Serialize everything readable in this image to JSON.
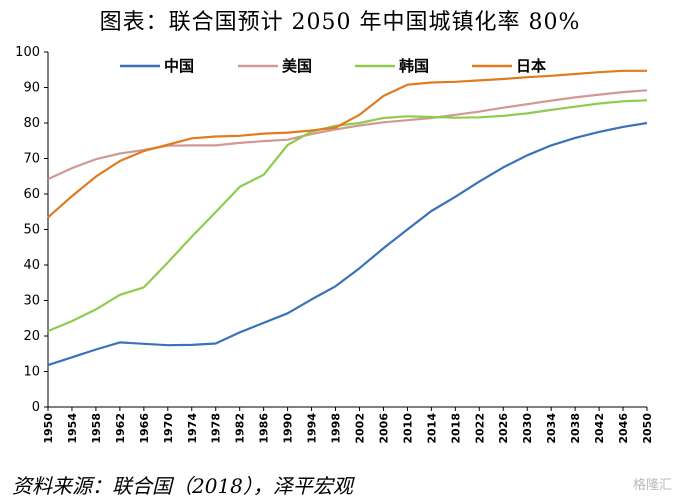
{
  "title": "图表：联合国预计 2050 年中国城镇化率 80%",
  "source": "资料来源：联合国（2018），泽平宏观",
  "watermark": "格隆汇",
  "chart_data": {
    "type": "line",
    "x": [
      1950,
      1954,
      1958,
      1962,
      1966,
      1970,
      1974,
      1978,
      1982,
      1986,
      1990,
      1994,
      1998,
      2002,
      2006,
      2010,
      2014,
      2018,
      2022,
      2026,
      2030,
      2034,
      2038,
      2042,
      2046,
      2050
    ],
    "ylim": [
      0,
      100
    ],
    "yticks": [
      0,
      10,
      20,
      30,
      40,
      50,
      60,
      70,
      80,
      90,
      100
    ],
    "grid": false,
    "legend_position": "top",
    "series": [
      {
        "name": "中国",
        "color": "#3a72b9",
        "values": [
          11.8,
          14.0,
          16.2,
          18.2,
          17.8,
          17.4,
          17.5,
          17.9,
          21.0,
          23.7,
          26.4,
          30.3,
          34.0,
          39.1,
          44.7,
          50.0,
          55.2,
          59.2,
          63.5,
          67.5,
          70.9,
          73.7,
          75.8,
          77.5,
          78.9,
          80.0
        ]
      },
      {
        "name": "美国",
        "color": "#d09a92",
        "values": [
          64.2,
          67.3,
          69.8,
          71.4,
          72.4,
          73.6,
          73.7,
          73.7,
          74.4,
          74.9,
          75.3,
          76.9,
          78.2,
          79.3,
          80.2,
          80.8,
          81.4,
          82.3,
          83.2,
          84.3,
          85.3,
          86.3,
          87.2,
          88.0,
          88.7,
          89.2
        ]
      },
      {
        "name": "韩国",
        "color": "#8fcc4e",
        "values": [
          21.4,
          24.2,
          27.5,
          31.6,
          33.7,
          40.7,
          48.0,
          54.9,
          62.0,
          65.4,
          73.8,
          77.6,
          79.2,
          80.0,
          81.4,
          81.9,
          81.7,
          81.5,
          81.6,
          82.0,
          82.7,
          83.7,
          84.6,
          85.5,
          86.1,
          86.4
        ]
      },
      {
        "name": "日本",
        "color": "#e07b1f",
        "values": [
          53.4,
          59.4,
          64.9,
          69.3,
          72.1,
          73.9,
          75.7,
          76.2,
          76.4,
          77.0,
          77.3,
          77.9,
          78.7,
          82.3,
          87.6,
          90.8,
          91.4,
          91.6,
          92.0,
          92.4,
          92.9,
          93.3,
          93.8,
          94.3,
          94.7,
          94.7
        ]
      }
    ]
  }
}
